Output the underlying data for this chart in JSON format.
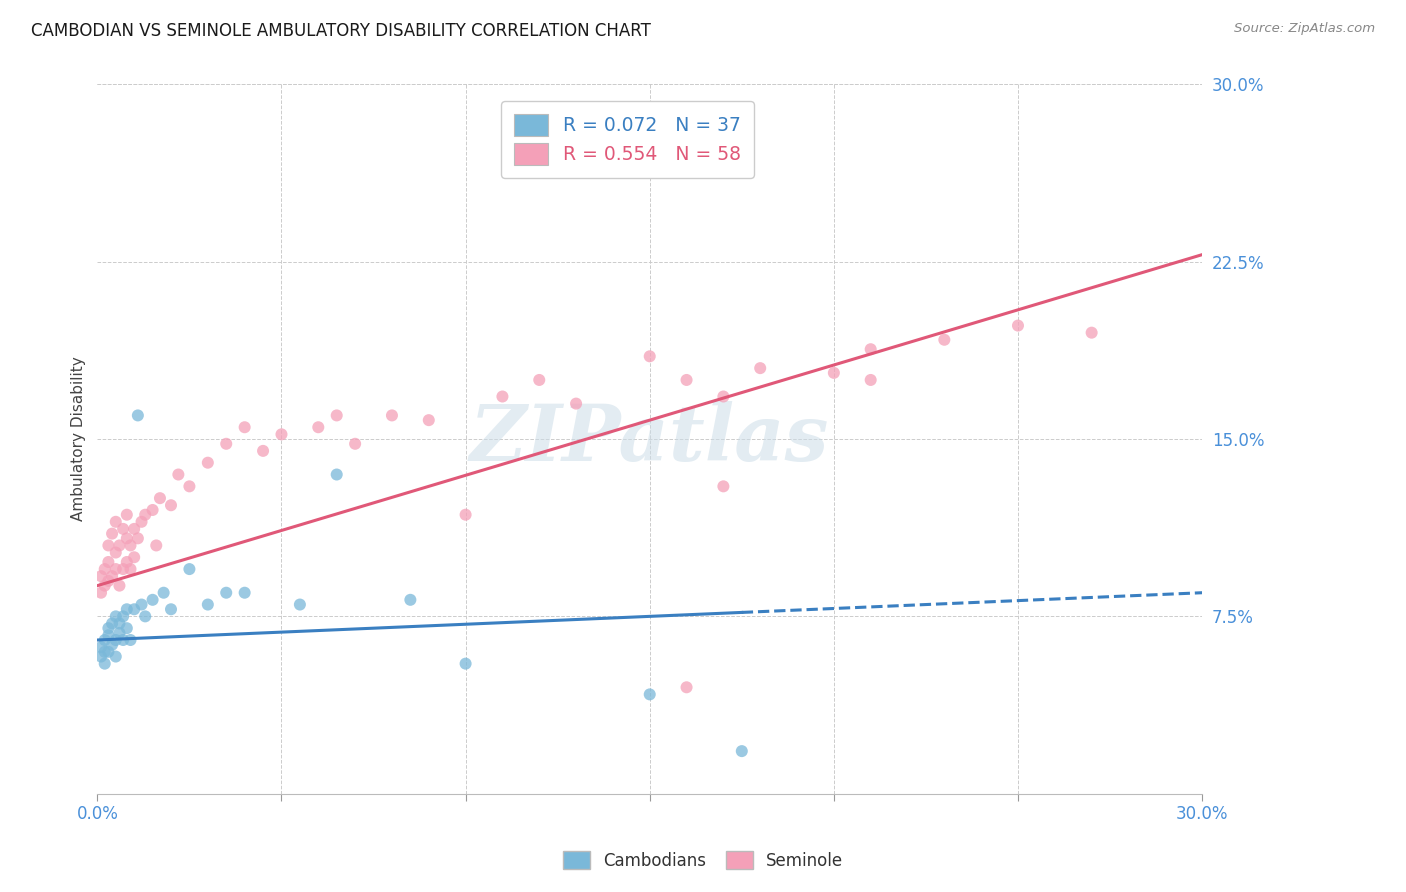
{
  "title": "CAMBODIAN VS SEMINOLE AMBULATORY DISABILITY CORRELATION CHART",
  "source": "Source: ZipAtlas.com",
  "ylabel": "Ambulatory Disability",
  "xlim": [
    0.0,
    0.3
  ],
  "ylim": [
    0.0,
    0.3
  ],
  "ytick_values": [
    0.075,
    0.15,
    0.225,
    0.3
  ],
  "ytick_labels": [
    "7.5%",
    "15.0%",
    "22.5%",
    "30.0%"
  ],
  "legend_label1": "Cambodians",
  "legend_label2": "Seminole",
  "r1": 0.072,
  "n1": 37,
  "r2": 0.554,
  "n2": 58,
  "color1": "#7ab8d9",
  "color2": "#f4a0b8",
  "trend_color1": "#3a7fc1",
  "trend_color2": "#e05878",
  "watermark": "ZIPatlas",
  "cambodian_x": [
    0.001,
    0.001,
    0.002,
    0.002,
    0.002,
    0.003,
    0.003,
    0.003,
    0.004,
    0.004,
    0.005,
    0.005,
    0.005,
    0.006,
    0.006,
    0.007,
    0.007,
    0.008,
    0.008,
    0.009,
    0.01,
    0.011,
    0.012,
    0.013,
    0.015,
    0.018,
    0.02,
    0.025,
    0.03,
    0.035,
    0.04,
    0.055,
    0.065,
    0.085,
    0.1,
    0.15,
    0.175
  ],
  "cambodian_y": [
    0.058,
    0.062,
    0.055,
    0.06,
    0.065,
    0.06,
    0.067,
    0.07,
    0.063,
    0.072,
    0.058,
    0.065,
    0.075,
    0.068,
    0.072,
    0.065,
    0.075,
    0.07,
    0.078,
    0.065,
    0.078,
    0.16,
    0.08,
    0.075,
    0.082,
    0.085,
    0.078,
    0.095,
    0.08,
    0.085,
    0.085,
    0.08,
    0.135,
    0.082,
    0.055,
    0.042,
    0.018
  ],
  "seminole_x": [
    0.001,
    0.001,
    0.002,
    0.002,
    0.003,
    0.003,
    0.003,
    0.004,
    0.004,
    0.005,
    0.005,
    0.005,
    0.006,
    0.006,
    0.007,
    0.007,
    0.008,
    0.008,
    0.008,
    0.009,
    0.009,
    0.01,
    0.01,
    0.011,
    0.012,
    0.013,
    0.015,
    0.016,
    0.017,
    0.02,
    0.022,
    0.025,
    0.03,
    0.035,
    0.04,
    0.045,
    0.05,
    0.06,
    0.065,
    0.07,
    0.08,
    0.09,
    0.1,
    0.11,
    0.12,
    0.13,
    0.15,
    0.16,
    0.17,
    0.18,
    0.2,
    0.21,
    0.23,
    0.25,
    0.27,
    0.17,
    0.21,
    0.16
  ],
  "seminole_y": [
    0.085,
    0.092,
    0.088,
    0.095,
    0.09,
    0.098,
    0.105,
    0.092,
    0.11,
    0.095,
    0.102,
    0.115,
    0.088,
    0.105,
    0.095,
    0.112,
    0.098,
    0.108,
    0.118,
    0.095,
    0.105,
    0.1,
    0.112,
    0.108,
    0.115,
    0.118,
    0.12,
    0.105,
    0.125,
    0.122,
    0.135,
    0.13,
    0.14,
    0.148,
    0.155,
    0.145,
    0.152,
    0.155,
    0.16,
    0.148,
    0.16,
    0.158,
    0.118,
    0.168,
    0.175,
    0.165,
    0.185,
    0.175,
    0.168,
    0.18,
    0.178,
    0.188,
    0.192,
    0.198,
    0.195,
    0.13,
    0.175,
    0.045
  ],
  "trend1_x0": 0.0,
  "trend1_x1": 0.3,
  "trend1_y0": 0.065,
  "trend1_y1": 0.085,
  "trend1_solid_end": 0.175,
  "trend2_x0": 0.0,
  "trend2_x1": 0.3,
  "trend2_y0": 0.088,
  "trend2_y1": 0.228
}
